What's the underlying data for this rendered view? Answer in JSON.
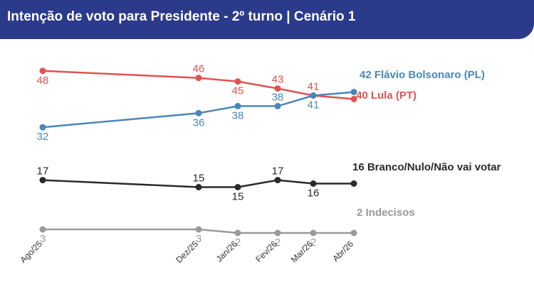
{
  "header": {
    "title": "Intenção de voto para Presidente - 2º turno | Cenário 1"
  },
  "chart_data": {
    "type": "line",
    "title": "Intenção de voto para Presidente - 2º turno | Cenário 1",
    "x": [
      "Ago/25",
      "Dez/25",
      "Jan/26",
      "Fev/26",
      "Mar/26",
      "Abr/26"
    ],
    "ylim": [
      0,
      50
    ],
    "grid": false,
    "legend": "end-labels",
    "series": [
      {
        "key": "lula",
        "color": "#e05252",
        "values": [
          48,
          46,
          45,
          43,
          41,
          40
        ],
        "end_label": "40 Lula (PT)",
        "labels_above": [
          false,
          true,
          false,
          true,
          true
        ]
      },
      {
        "key": "flavio",
        "color": "#4a86b8",
        "values": [
          32,
          36,
          38,
          38,
          41,
          42
        ],
        "end_label": "42 Flávio Bolsonaro (PL)",
        "labels_above": [
          false,
          false,
          false,
          true,
          false
        ]
      },
      {
        "key": "branco",
        "color": "#2a2a2a",
        "values": [
          17,
          15,
          15,
          17,
          16,
          16
        ],
        "end_label": "16 Branco/Nulo/Não vai votar",
        "labels_above": [
          true,
          true,
          false,
          true,
          false
        ]
      },
      {
        "key": "indecisos",
        "color": "#9a9a9a",
        "values": [
          3,
          3,
          2,
          2,
          2,
          2
        ],
        "end_label": "2 Indecisos",
        "labels_above": [
          false,
          false,
          false,
          false,
          false
        ]
      }
    ]
  }
}
